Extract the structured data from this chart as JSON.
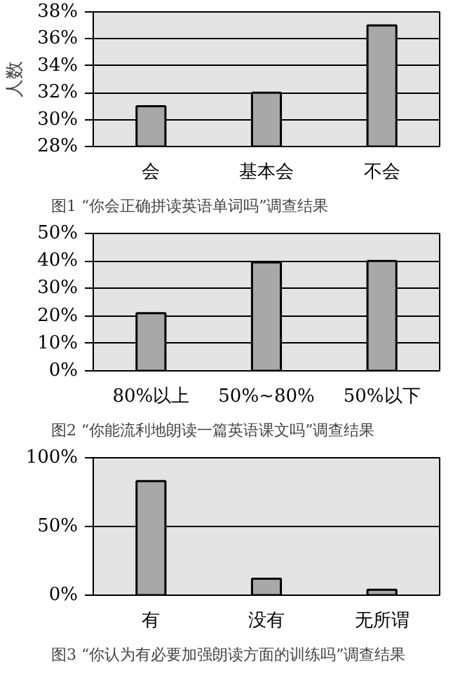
{
  "chart_data": [
    {
      "type": "bar",
      "title": "图1 “你会正确拼读英语单词吗”调查结果",
      "ylabel": "人数",
      "categories": [
        "会",
        "基本会",
        "不会"
      ],
      "values": [
        31,
        32,
        37
      ],
      "color": "#a8a8a8",
      "ylim": [
        28,
        38
      ],
      "yticks": [
        {
          "value": 28,
          "label": "28%"
        },
        {
          "value": 30,
          "label": "30%"
        },
        {
          "value": 32,
          "label": "32%"
        },
        {
          "value": 34,
          "label": "34%"
        },
        {
          "value": 36,
          "label": "36%"
        },
        {
          "value": 38,
          "label": "38%"
        }
      ],
      "grid": "y"
    },
    {
      "type": "bar",
      "title": "图2 “你能流利地朗读一篇英语课文吗”调查结果",
      "categories": [
        "80%以上",
        "50%~80%",
        "50%以下"
      ],
      "values": [
        21,
        39.5,
        40
      ],
      "color": "#a8a8a8",
      "ylim": [
        0,
        50
      ],
      "yticks": [
        {
          "value": 0,
          "label": "0%"
        },
        {
          "value": 10,
          "label": "10%"
        },
        {
          "value": 20,
          "label": "20%"
        },
        {
          "value": 30,
          "label": "30%"
        },
        {
          "value": 40,
          "label": "40%"
        },
        {
          "value": 50,
          "label": "50%"
        }
      ],
      "grid": "y"
    },
    {
      "type": "bar",
      "title": "图3 “你认为有必要加强朗读方面的训练吗”调查结果",
      "categories": [
        "有",
        "没有",
        "无所谓"
      ],
      "values": [
        83,
        12,
        4
      ],
      "color": "#a8a8a8",
      "ylim": [
        0,
        100
      ],
      "yticks": [
        {
          "value": 0,
          "label": "0%"
        },
        {
          "value": 50,
          "label": "50%"
        },
        {
          "value": 100,
          "label": "100%"
        }
      ],
      "grid": "y"
    }
  ]
}
